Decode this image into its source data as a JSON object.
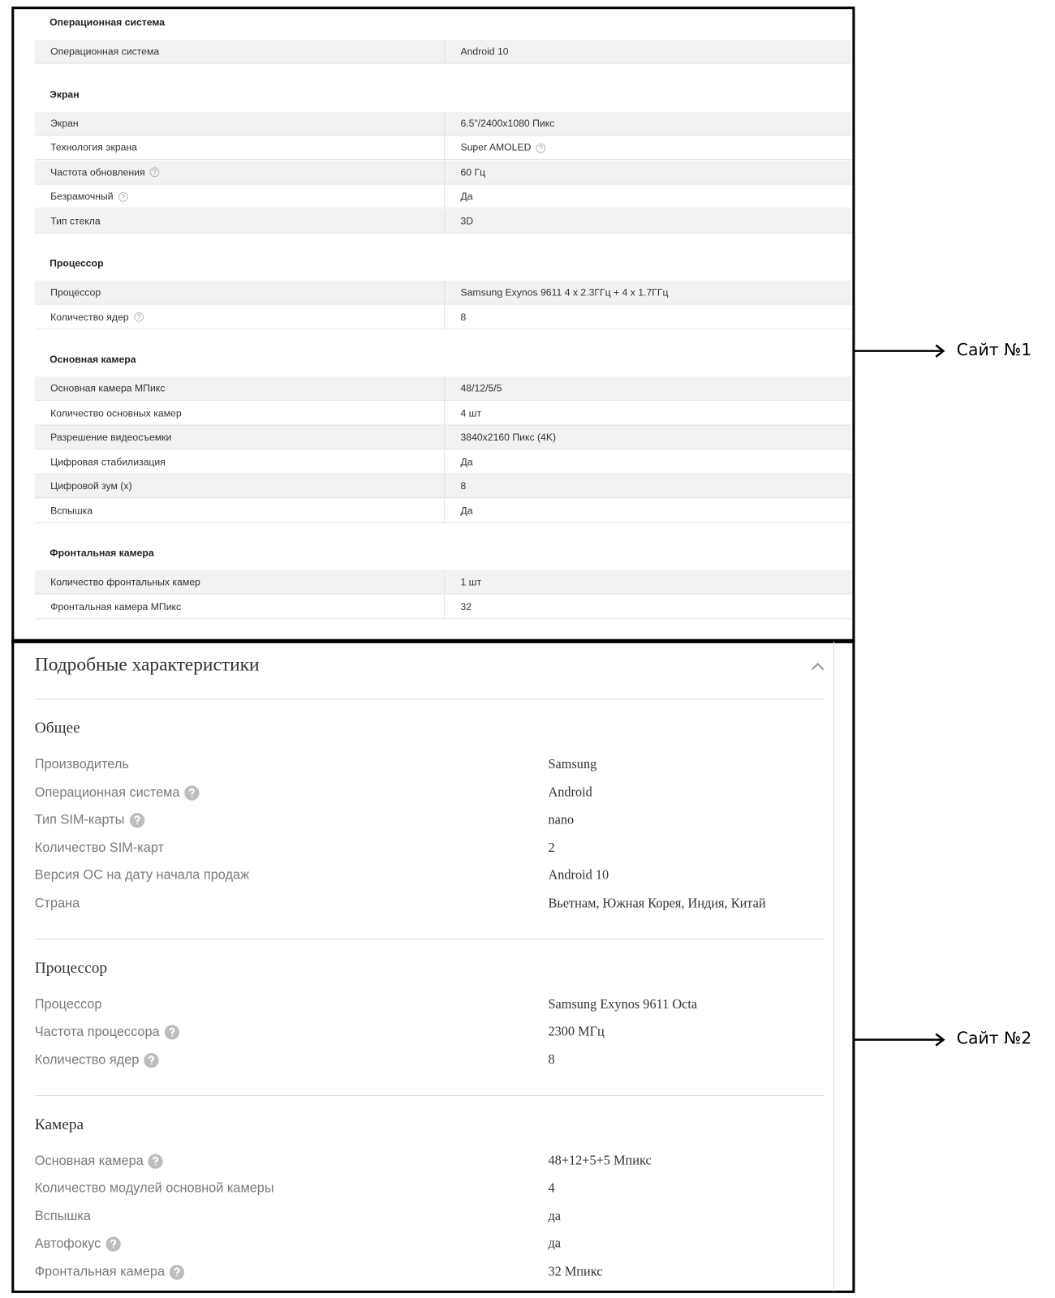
{
  "site_1": {
    "sections": [
      {
        "title": "Операционная система",
        "rows": [
          {
            "label": "Операционная система",
            "value": "Android 10"
          }
        ]
      },
      {
        "title": "Экран",
        "rows": [
          {
            "label": "Экран",
            "value": "6.5\"/2400x1080 Пикс"
          },
          {
            "label": "Технология экрана",
            "value": "Super AMOLED",
            "hint": "value"
          },
          {
            "label": "Частота обновления",
            "value": "60 Гц",
            "hint": "label"
          },
          {
            "label": "Безрамочный",
            "value": "Да",
            "hint": "label"
          },
          {
            "label": "Тип стекла",
            "value": "3D"
          }
        ]
      },
      {
        "title": "Процессор",
        "rows": [
          {
            "label": "Процессор",
            "value": "Samsung Exynos 9611 4 x 2.3ГГц + 4 x 1.7ГГц"
          },
          {
            "label": "Количество ядер",
            "value": "8",
            "hint": "label"
          }
        ]
      },
      {
        "title": "Основная камера",
        "rows": [
          {
            "label": "Основная камера МПикс",
            "value": "48/12/5/5"
          },
          {
            "label": "Количество основных камер",
            "value": "4 шт"
          },
          {
            "label": "Разрешение видеосъемки",
            "value": "3840x2160 Пикс (4K)"
          },
          {
            "label": "Цифровая стабилизация",
            "value": "Да"
          },
          {
            "label": "Цифровой зум (x)",
            "value": "8"
          },
          {
            "label": "Вспышка",
            "value": "Да"
          }
        ]
      },
      {
        "title": "Фронтальная камера",
        "rows": [
          {
            "label": "Количество фронтальных камер",
            "value": "1 шт"
          },
          {
            "label": "Фронтальная камера МПикс",
            "value": "32"
          }
        ]
      }
    ]
  },
  "site_2": {
    "title": "Подробные характеристики",
    "sections": [
      {
        "title": "Общее",
        "rows": [
          {
            "label": "Производитель",
            "value": "Samsung"
          },
          {
            "label": "Операционная система",
            "value": "Android",
            "hint": "label"
          },
          {
            "label": "Тип SIM-карты",
            "value": "nano",
            "hint": "label"
          },
          {
            "label": "Количество SIM-карт",
            "value": "2"
          },
          {
            "label": "Версия ОС на дату начала продаж",
            "value": "Android 10"
          },
          {
            "label": "Страна",
            "value": "Вьетнам, Южная Корея, Индия, Китай"
          }
        ]
      },
      {
        "title": "Процессор",
        "rows": [
          {
            "label": "Процессор",
            "value": "Samsung Exynos 9611 Octa"
          },
          {
            "label": "Частота процессора",
            "value": "2300 МГц",
            "hint": "label"
          },
          {
            "label": "Количество ядер",
            "value": "8",
            "hint": "label"
          }
        ]
      },
      {
        "title": "Камера",
        "rows": [
          {
            "label": "Основная камера",
            "value": "48+12+5+5 Мпикс",
            "hint": "label"
          },
          {
            "label": "Количество модулей основной камеры",
            "value": "4"
          },
          {
            "label": "Вспышка",
            "value": "да"
          },
          {
            "label": "Автофокус",
            "value": "да",
            "hint": "label"
          },
          {
            "label": "Фронтальная камера",
            "value": "32 Мпикс",
            "hint": "label"
          }
        ]
      }
    ]
  },
  "annotations": [
    "Сайт №1",
    "Сайт №2"
  ]
}
